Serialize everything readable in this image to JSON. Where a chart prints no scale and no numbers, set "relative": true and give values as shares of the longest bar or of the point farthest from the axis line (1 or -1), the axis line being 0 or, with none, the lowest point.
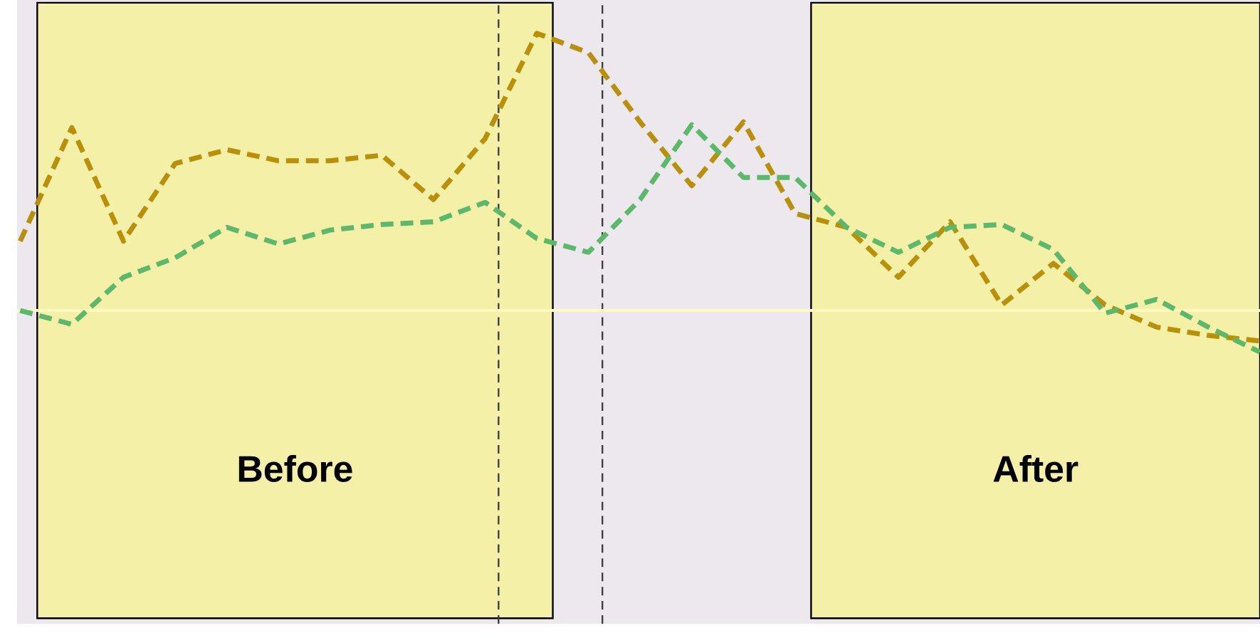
{
  "chart_data": {
    "type": "line",
    "relative": true,
    "line_style": "dashed",
    "marker": "none",
    "categories": [
      null,
      null,
      null,
      null,
      null,
      null,
      null,
      null,
      null,
      null,
      null,
      null,
      null,
      null,
      null,
      null,
      null,
      null,
      null,
      null,
      null,
      null,
      null,
      null,
      null
    ],
    "series": [
      {
        "color": "#b8900a",
        "values": [
          0.25,
          0.66,
          0.25,
          0.53,
          0.58,
          0.54,
          0.54,
          0.56,
          0.4,
          0.62,
          1.0,
          0.93,
          0.68,
          0.45,
          0.68,
          0.35,
          0.3,
          0.12,
          0.32,
          0.02,
          0.17,
          0.02,
          -0.06,
          -0.09,
          -0.11
        ]
      },
      {
        "color": "#5cb86a",
        "values": [
          0.0,
          -0.05,
          0.12,
          0.19,
          0.3,
          0.24,
          0.29,
          0.31,
          0.32,
          0.39,
          0.26,
          0.21,
          0.4,
          0.67,
          0.48,
          0.48,
          0.3,
          0.21,
          0.3,
          0.31,
          0.22,
          -0.01,
          0.04,
          -0.06,
          -0.15
        ]
      }
    ],
    "ref_lines": [
      {
        "axis": "y",
        "value": 0,
        "color": "#fffac0"
      }
    ],
    "annotations": [
      "Before",
      "After"
    ]
  }
}
